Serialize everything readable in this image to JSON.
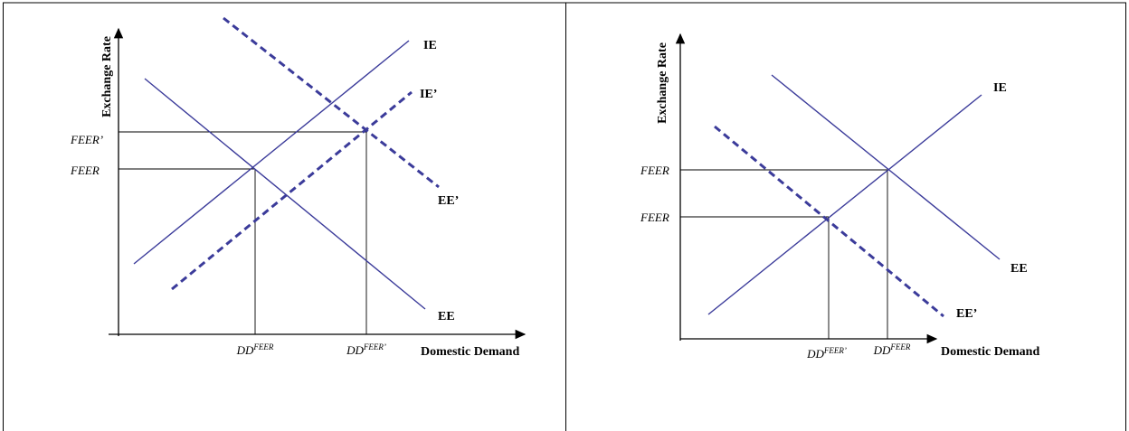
{
  "panels": [
    {
      "y_axis_label": "Exchange Rate",
      "x_axis_label": "Domestic Demand",
      "y_ticks": [
        "FEER’",
        "FEER"
      ],
      "x_ticks": [
        {
          "base": "DD",
          "sup": "FEER"
        },
        {
          "base": "DD",
          "sup": "FEER’"
        }
      ],
      "curves": [
        "IE",
        "IE’",
        "EE’",
        "EE"
      ]
    },
    {
      "y_axis_label": "Exchange Rate",
      "x_axis_label": "Domestic Demand",
      "y_ticks": [
        "FEER",
        "FEER"
      ],
      "x_ticks": [
        {
          "base": "DD",
          "sup": "FEER’"
        },
        {
          "base": "DD",
          "sup": "FEER"
        }
      ],
      "curves": [
        "IE",
        "EE",
        "EE’"
      ]
    }
  ]
}
